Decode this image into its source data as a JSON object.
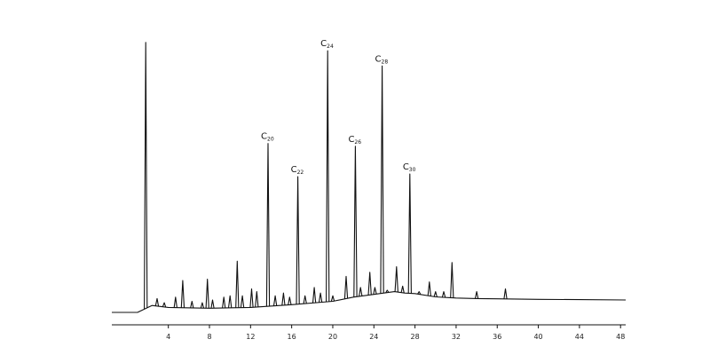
{
  "chart_data": {
    "type": "line",
    "title": "",
    "xlabel": "",
    "ylabel": "",
    "grid": false,
    "xlim": [
      -1.5,
      48.5
    ],
    "ylim": [
      0,
      100
    ],
    "x_ticks": [
      4,
      8,
      12,
      16,
      20,
      24,
      28,
      32,
      36,
      40,
      44,
      48
    ],
    "x_tick_labels": [
      "4",
      "8",
      "12",
      "16",
      "20",
      "24",
      "28",
      "32",
      "36",
      "40",
      "44",
      "48"
    ],
    "baseline": [
      [
        -1.5,
        0
      ],
      [
        1.0,
        0
      ],
      [
        2.4,
        2.5
      ],
      [
        4,
        1.8
      ],
      [
        8,
        1.5
      ],
      [
        12,
        1.8
      ],
      [
        16,
        2.8
      ],
      [
        20,
        4.0
      ],
      [
        22,
        5.5
      ],
      [
        24,
        6.5
      ],
      [
        26,
        7.5
      ],
      [
        27,
        7.0
      ],
      [
        28,
        6.8
      ],
      [
        30,
        5.6
      ],
      [
        32,
        5.2
      ],
      [
        34,
        5.0
      ],
      [
        36,
        4.9
      ],
      [
        40,
        4.7
      ],
      [
        44,
        4.6
      ],
      [
        48.5,
        4.5
      ]
    ],
    "peaks": [
      {
        "x": 1.8,
        "y": 97.5,
        "label": ""
      },
      {
        "x": 2.9,
        "y": 5.0,
        "label": ""
      },
      {
        "x": 3.6,
        "y": 3.5,
        "label": ""
      },
      {
        "x": 4.7,
        "y": 5.5,
        "label": ""
      },
      {
        "x": 5.4,
        "y": 11.5,
        "label": ""
      },
      {
        "x": 6.3,
        "y": 4.0,
        "label": ""
      },
      {
        "x": 7.3,
        "y": 3.5,
        "label": ""
      },
      {
        "x": 7.8,
        "y": 12.0,
        "label": ""
      },
      {
        "x": 8.3,
        "y": 4.5,
        "label": ""
      },
      {
        "x": 9.4,
        "y": 5.5,
        "label": ""
      },
      {
        "x": 10.0,
        "y": 6.0,
        "label": ""
      },
      {
        "x": 10.7,
        "y": 18.5,
        "label": ""
      },
      {
        "x": 11.2,
        "y": 6.0,
        "label": ""
      },
      {
        "x": 12.1,
        "y": 8.5,
        "label": ""
      },
      {
        "x": 12.6,
        "y": 7.5,
        "label": ""
      },
      {
        "x": 13.7,
        "y": 61.0,
        "label": "C20"
      },
      {
        "x": 14.4,
        "y": 6.0,
        "label": ""
      },
      {
        "x": 15.2,
        "y": 7.0,
        "label": ""
      },
      {
        "x": 15.8,
        "y": 5.5,
        "label": ""
      },
      {
        "x": 16.6,
        "y": 49.0,
        "label": "C22"
      },
      {
        "x": 17.3,
        "y": 6.0,
        "label": ""
      },
      {
        "x": 18.2,
        "y": 9.0,
        "label": ""
      },
      {
        "x": 18.8,
        "y": 7.0,
        "label": ""
      },
      {
        "x": 19.5,
        "y": 94.5,
        "label": "C24"
      },
      {
        "x": 20.0,
        "y": 6.0,
        "label": ""
      },
      {
        "x": 21.3,
        "y": 13.0,
        "label": ""
      },
      {
        "x": 22.2,
        "y": 60.0,
        "label": "C26"
      },
      {
        "x": 22.7,
        "y": 9.0,
        "label": ""
      },
      {
        "x": 23.6,
        "y": 14.5,
        "label": ""
      },
      {
        "x": 24.1,
        "y": 9.0,
        "label": ""
      },
      {
        "x": 24.8,
        "y": 89.0,
        "label": "C28"
      },
      {
        "x": 25.3,
        "y": 8.0,
        "label": ""
      },
      {
        "x": 26.2,
        "y": 16.5,
        "label": ""
      },
      {
        "x": 26.8,
        "y": 9.5,
        "label": ""
      },
      {
        "x": 27.5,
        "y": 50.0,
        "label": "C30"
      },
      {
        "x": 28.4,
        "y": 7.5,
        "label": ""
      },
      {
        "x": 29.4,
        "y": 11.0,
        "label": ""
      },
      {
        "x": 30.0,
        "y": 7.5,
        "label": ""
      },
      {
        "x": 30.8,
        "y": 7.5,
        "label": ""
      },
      {
        "x": 31.6,
        "y": 18.0,
        "label": ""
      },
      {
        "x": 34.0,
        "y": 7.5,
        "label": ""
      },
      {
        "x": 36.8,
        "y": 8.5,
        "label": ""
      }
    ]
  }
}
